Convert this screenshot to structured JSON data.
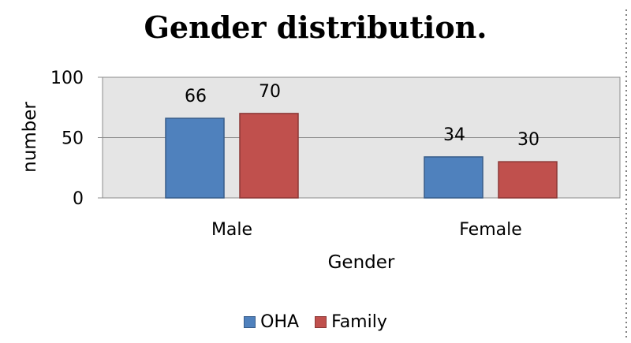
{
  "chart_data": {
    "type": "bar",
    "title": "Gender distribution.",
    "xlabel": "Gender",
    "ylabel": "number",
    "categories": [
      "Male",
      "Female"
    ],
    "series": [
      {
        "name": "OHA",
        "values": [
          66,
          34
        ],
        "color": "#4f81bd",
        "edge": "#385d8a"
      },
      {
        "name": "Family",
        "values": [
          70,
          30
        ],
        "color": "#c0504d",
        "edge": "#8c3836"
      }
    ],
    "ylim": [
      0,
      100
    ],
    "yticks": [
      "0",
      "50",
      "100"
    ],
    "grid": true,
    "plot_background": "#e5e5e5",
    "legend_position": "bottom"
  }
}
